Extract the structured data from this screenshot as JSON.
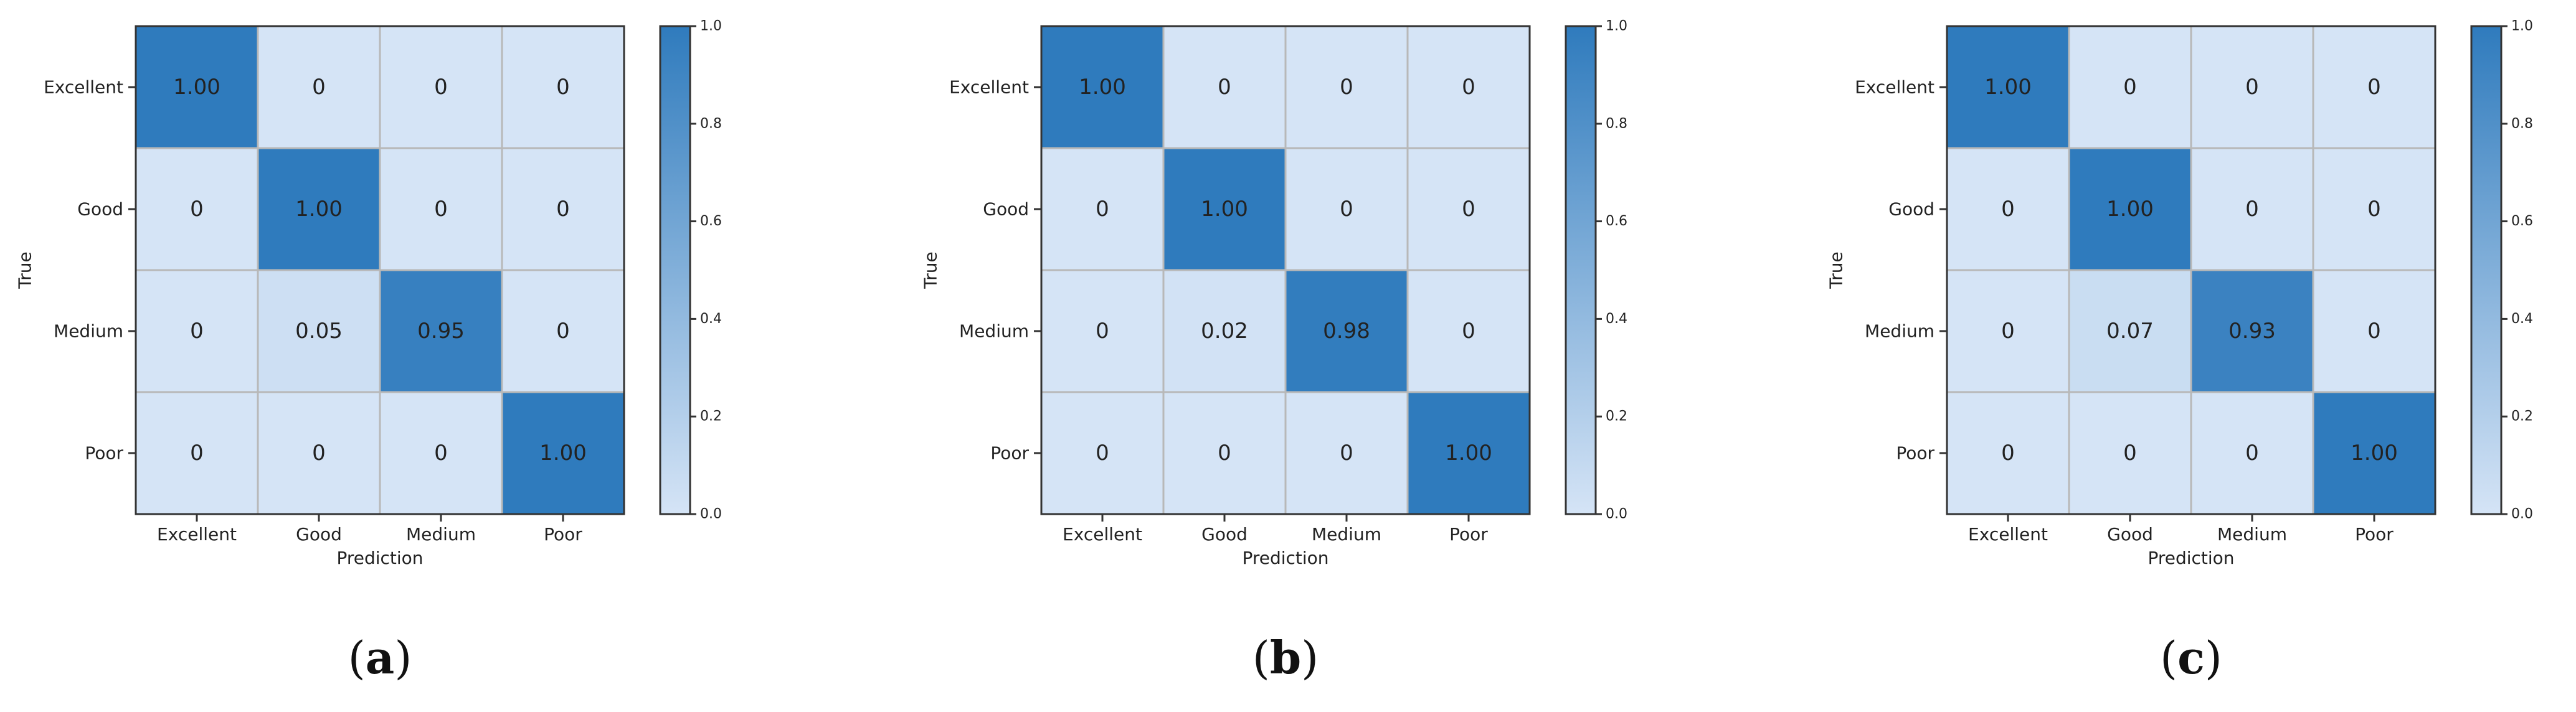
{
  "chart_data": [
    {
      "type": "heatmap",
      "panel_label": "(a)",
      "panel_letter": "a",
      "title": "",
      "xlabel": "Prediction",
      "ylabel": "True",
      "x_categories": [
        "Excellent",
        "Good",
        "Medium",
        "Poor"
      ],
      "y_categories": [
        "Excellent",
        "Good",
        "Medium",
        "Poor"
      ],
      "values": [
        [
          1.0,
          0,
          0,
          0
        ],
        [
          0,
          1.0,
          0,
          0
        ],
        [
          0,
          0.05,
          0.95,
          0
        ],
        [
          0,
          0,
          0,
          1.0
        ]
      ],
      "cell_labels": [
        [
          "1.00",
          "0",
          "0",
          "0"
        ],
        [
          "0",
          "1.00",
          "0",
          "0"
        ],
        [
          "0",
          "0.05",
          "0.95",
          "0"
        ],
        [
          "0",
          "0",
          "0",
          "1.00"
        ]
      ],
      "colorbar": {
        "min": 0.0,
        "max": 1.0,
        "ticks": [
          "0.0",
          "0.2",
          "0.4",
          "0.6",
          "0.8",
          "1.0"
        ]
      },
      "colormap": {
        "low": "#d5e4f6",
        "high": "#2f7bbd"
      },
      "grid": true
    },
    {
      "type": "heatmap",
      "panel_label": "(b)",
      "panel_letter": "b",
      "title": "",
      "xlabel": "Prediction",
      "ylabel": "True",
      "x_categories": [
        "Excellent",
        "Good",
        "Medium",
        "Poor"
      ],
      "y_categories": [
        "Excellent",
        "Good",
        "Medium",
        "Poor"
      ],
      "values": [
        [
          1.0,
          0,
          0,
          0
        ],
        [
          0,
          1.0,
          0,
          0
        ],
        [
          0,
          0.02,
          0.98,
          0
        ],
        [
          0,
          0,
          0,
          1.0
        ]
      ],
      "cell_labels": [
        [
          "1.00",
          "0",
          "0",
          "0"
        ],
        [
          "0",
          "1.00",
          "0",
          "0"
        ],
        [
          "0",
          "0.02",
          "0.98",
          "0"
        ],
        [
          "0",
          "0",
          "0",
          "1.00"
        ]
      ],
      "colorbar": {
        "min": 0.0,
        "max": 1.0,
        "ticks": [
          "0.0",
          "0.2",
          "0.4",
          "0.6",
          "0.8",
          "1.0"
        ]
      },
      "colormap": {
        "low": "#d5e4f6",
        "high": "#2f7bbd"
      },
      "grid": true
    },
    {
      "type": "heatmap",
      "panel_label": "(c)",
      "panel_letter": "c",
      "title": "",
      "xlabel": "Prediction",
      "ylabel": "True",
      "x_categories": [
        "Excellent",
        "Good",
        "Medium",
        "Poor"
      ],
      "y_categories": [
        "Excellent",
        "Good",
        "Medium",
        "Poor"
      ],
      "values": [
        [
          1.0,
          0,
          0,
          0
        ],
        [
          0,
          1.0,
          0,
          0
        ],
        [
          0,
          0.07,
          0.93,
          0
        ],
        [
          0,
          0,
          0,
          1.0
        ]
      ],
      "cell_labels": [
        [
          "1.00",
          "0",
          "0",
          "0"
        ],
        [
          "0",
          "1.00",
          "0",
          "0"
        ],
        [
          "0",
          "0.07",
          "0.93",
          "0"
        ],
        [
          "0",
          "0",
          "0",
          "1.00"
        ]
      ],
      "colorbar": {
        "min": 0.0,
        "max": 1.0,
        "ticks": [
          "0.0",
          "0.2",
          "0.4",
          "0.6",
          "0.8",
          "1.0"
        ]
      },
      "colormap": {
        "low": "#d5e4f6",
        "high": "#2f7bbd"
      },
      "grid": true
    }
  ]
}
